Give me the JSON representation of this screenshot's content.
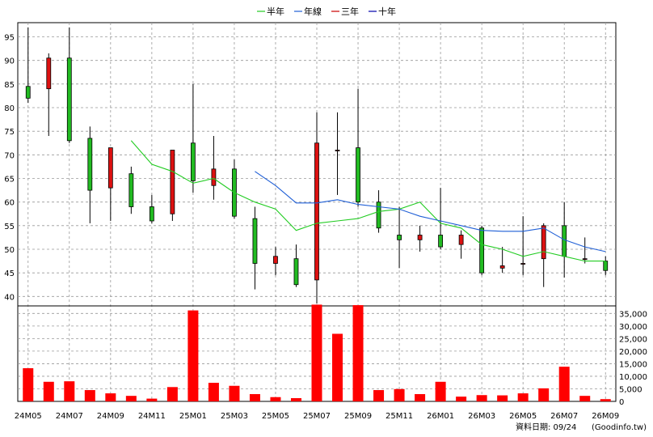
{
  "chart_data": {
    "type": "candlestick",
    "legend": [
      {
        "name": "半年",
        "color": "#22cc22"
      },
      {
        "name": "年線",
        "color": "#1f5fd6"
      },
      {
        "name": "三年",
        "color": "#cc0000"
      },
      {
        "name": "十年",
        "color": "#0000aa"
      }
    ],
    "up_color": "#dd1111",
    "down_color": "#22bb22",
    "volume_color": "#ff0000",
    "price_axis": {
      "min": 38,
      "max": 98,
      "ticks": [
        40,
        45,
        50,
        55,
        60,
        65,
        70,
        75,
        80,
        85,
        90,
        95
      ]
    },
    "volume_axis": {
      "min": 0,
      "max": 38000,
      "ticks": [
        "0",
        "5,000",
        "10,000",
        "15,000",
        "20,000",
        "25,000",
        "30,000",
        "35,000"
      ]
    },
    "x_labels": [
      "24M05",
      "24M07",
      "24M09",
      "24M11",
      "25M01",
      "25M03",
      "25M05",
      "25M07",
      "25M09",
      "25M11",
      "26M01",
      "26M03",
      "26M05",
      "26M07",
      "26M09"
    ],
    "candles": [
      {
        "o": 84.5,
        "h": 97.0,
        "l": 81.0,
        "c": 82.0
      },
      {
        "o": 84.0,
        "h": 91.5,
        "l": 74.0,
        "c": 90.5
      },
      {
        "o": 90.5,
        "h": 97.0,
        "l": 72.5,
        "c": 73.0
      },
      {
        "o": 73.5,
        "h": 76.0,
        "l": 55.5,
        "c": 62.5
      },
      {
        "o": 63.0,
        "h": 71.5,
        "l": 56.0,
        "c": 71.5
      },
      {
        "o": 66.0,
        "h": 67.5,
        "l": 57.5,
        "c": 59.0
      },
      {
        "o": 59.0,
        "h": 61.5,
        "l": 55.5,
        "c": 56.0
      },
      {
        "o": 57.5,
        "h": 71.0,
        "l": 56.0,
        "c": 71.0
      },
      {
        "o": 72.5,
        "h": 85.0,
        "l": 62.0,
        "c": 64.5
      },
      {
        "o": 63.5,
        "h": 74.0,
        "l": 60.5,
        "c": 67.0
      },
      {
        "o": 67.0,
        "h": 69.0,
        "l": 56.5,
        "c": 57.0
      },
      {
        "o": 56.5,
        "h": 59.0,
        "l": 41.5,
        "c": 47.0
      },
      {
        "o": 47.0,
        "h": 50.5,
        "l": 44.5,
        "c": 48.5
      },
      {
        "o": 48.0,
        "h": 51.0,
        "l": 42.0,
        "c": 42.5
      },
      {
        "o": 43.5,
        "h": 79.0,
        "l": 38.5,
        "c": 72.5
      },
      {
        "o": 71.0,
        "h": 79.0,
        "l": 61.5,
        "c": 71.0
      },
      {
        "o": 71.5,
        "h": 84.0,
        "l": 59.0,
        "c": 60.0
      },
      {
        "o": 60.0,
        "h": 62.5,
        "l": 53.5,
        "c": 54.5
      },
      {
        "o": 53.0,
        "h": 59.0,
        "l": 46.0,
        "c": 52.0
      },
      {
        "o": 52.0,
        "h": 55.0,
        "l": 49.5,
        "c": 53.0
      },
      {
        "o": 53.0,
        "h": 63.0,
        "l": 50.0,
        "c": 50.5
      },
      {
        "o": 51.0,
        "h": 54.0,
        "l": 48.0,
        "c": 53.0
      },
      {
        "o": 54.5,
        "h": 55.0,
        "l": 44.5,
        "c": 45.0
      },
      {
        "o": 46.0,
        "h": 50.5,
        "l": 45.0,
        "c": 46.5
      },
      {
        "o": 47.0,
        "h": 57.0,
        "l": 44.5,
        "c": 47.0
      },
      {
        "o": 48.0,
        "h": 55.5,
        "l": 42.0,
        "c": 55.0
      },
      {
        "o": 55.0,
        "h": 60.0,
        "l": 44.0,
        "c": 48.5
      },
      {
        "o": 48.0,
        "h": 52.5,
        "l": 47.0,
        "c": 48.0
      },
      {
        "o": 47.5,
        "h": 48.5,
        "l": 44.5,
        "c": 45.5
      }
    ],
    "volumes": [
      13200,
      7800,
      8000,
      4500,
      3200,
      2200,
      1100,
      5700,
      36200,
      7400,
      6200,
      2900,
      1700,
      1300,
      38500,
      26900,
      38300,
      4500,
      4900,
      2900,
      7800,
      1900,
      2500,
      2400,
      3200,
      5200,
      13800,
      2200,
      900
    ],
    "ma_half_year": [
      null,
      null,
      null,
      null,
      null,
      73.0,
      68.0,
      66.5,
      64.0,
      65.0,
      62.0,
      60.0,
      58.5,
      54.0,
      55.5,
      56.0,
      56.5,
      58.0,
      58.5,
      60.0,
      55.5,
      54.5,
      51.0,
      50.0,
      48.5,
      49.5,
      48.5,
      47.5,
      47.5
    ],
    "ma_year": [
      null,
      null,
      null,
      null,
      null,
      null,
      null,
      null,
      null,
      null,
      null,
      66.5,
      63.5,
      59.8,
      59.8,
      60.5,
      59.5,
      59.0,
      58.5,
      57.0,
      56.0,
      55.0,
      54.0,
      53.8,
      53.8,
      54.5,
      52.0,
      50.5,
      49.5
    ],
    "footer": "資料日期: 09/24",
    "watermark": "(Goodinfo.tw)"
  }
}
